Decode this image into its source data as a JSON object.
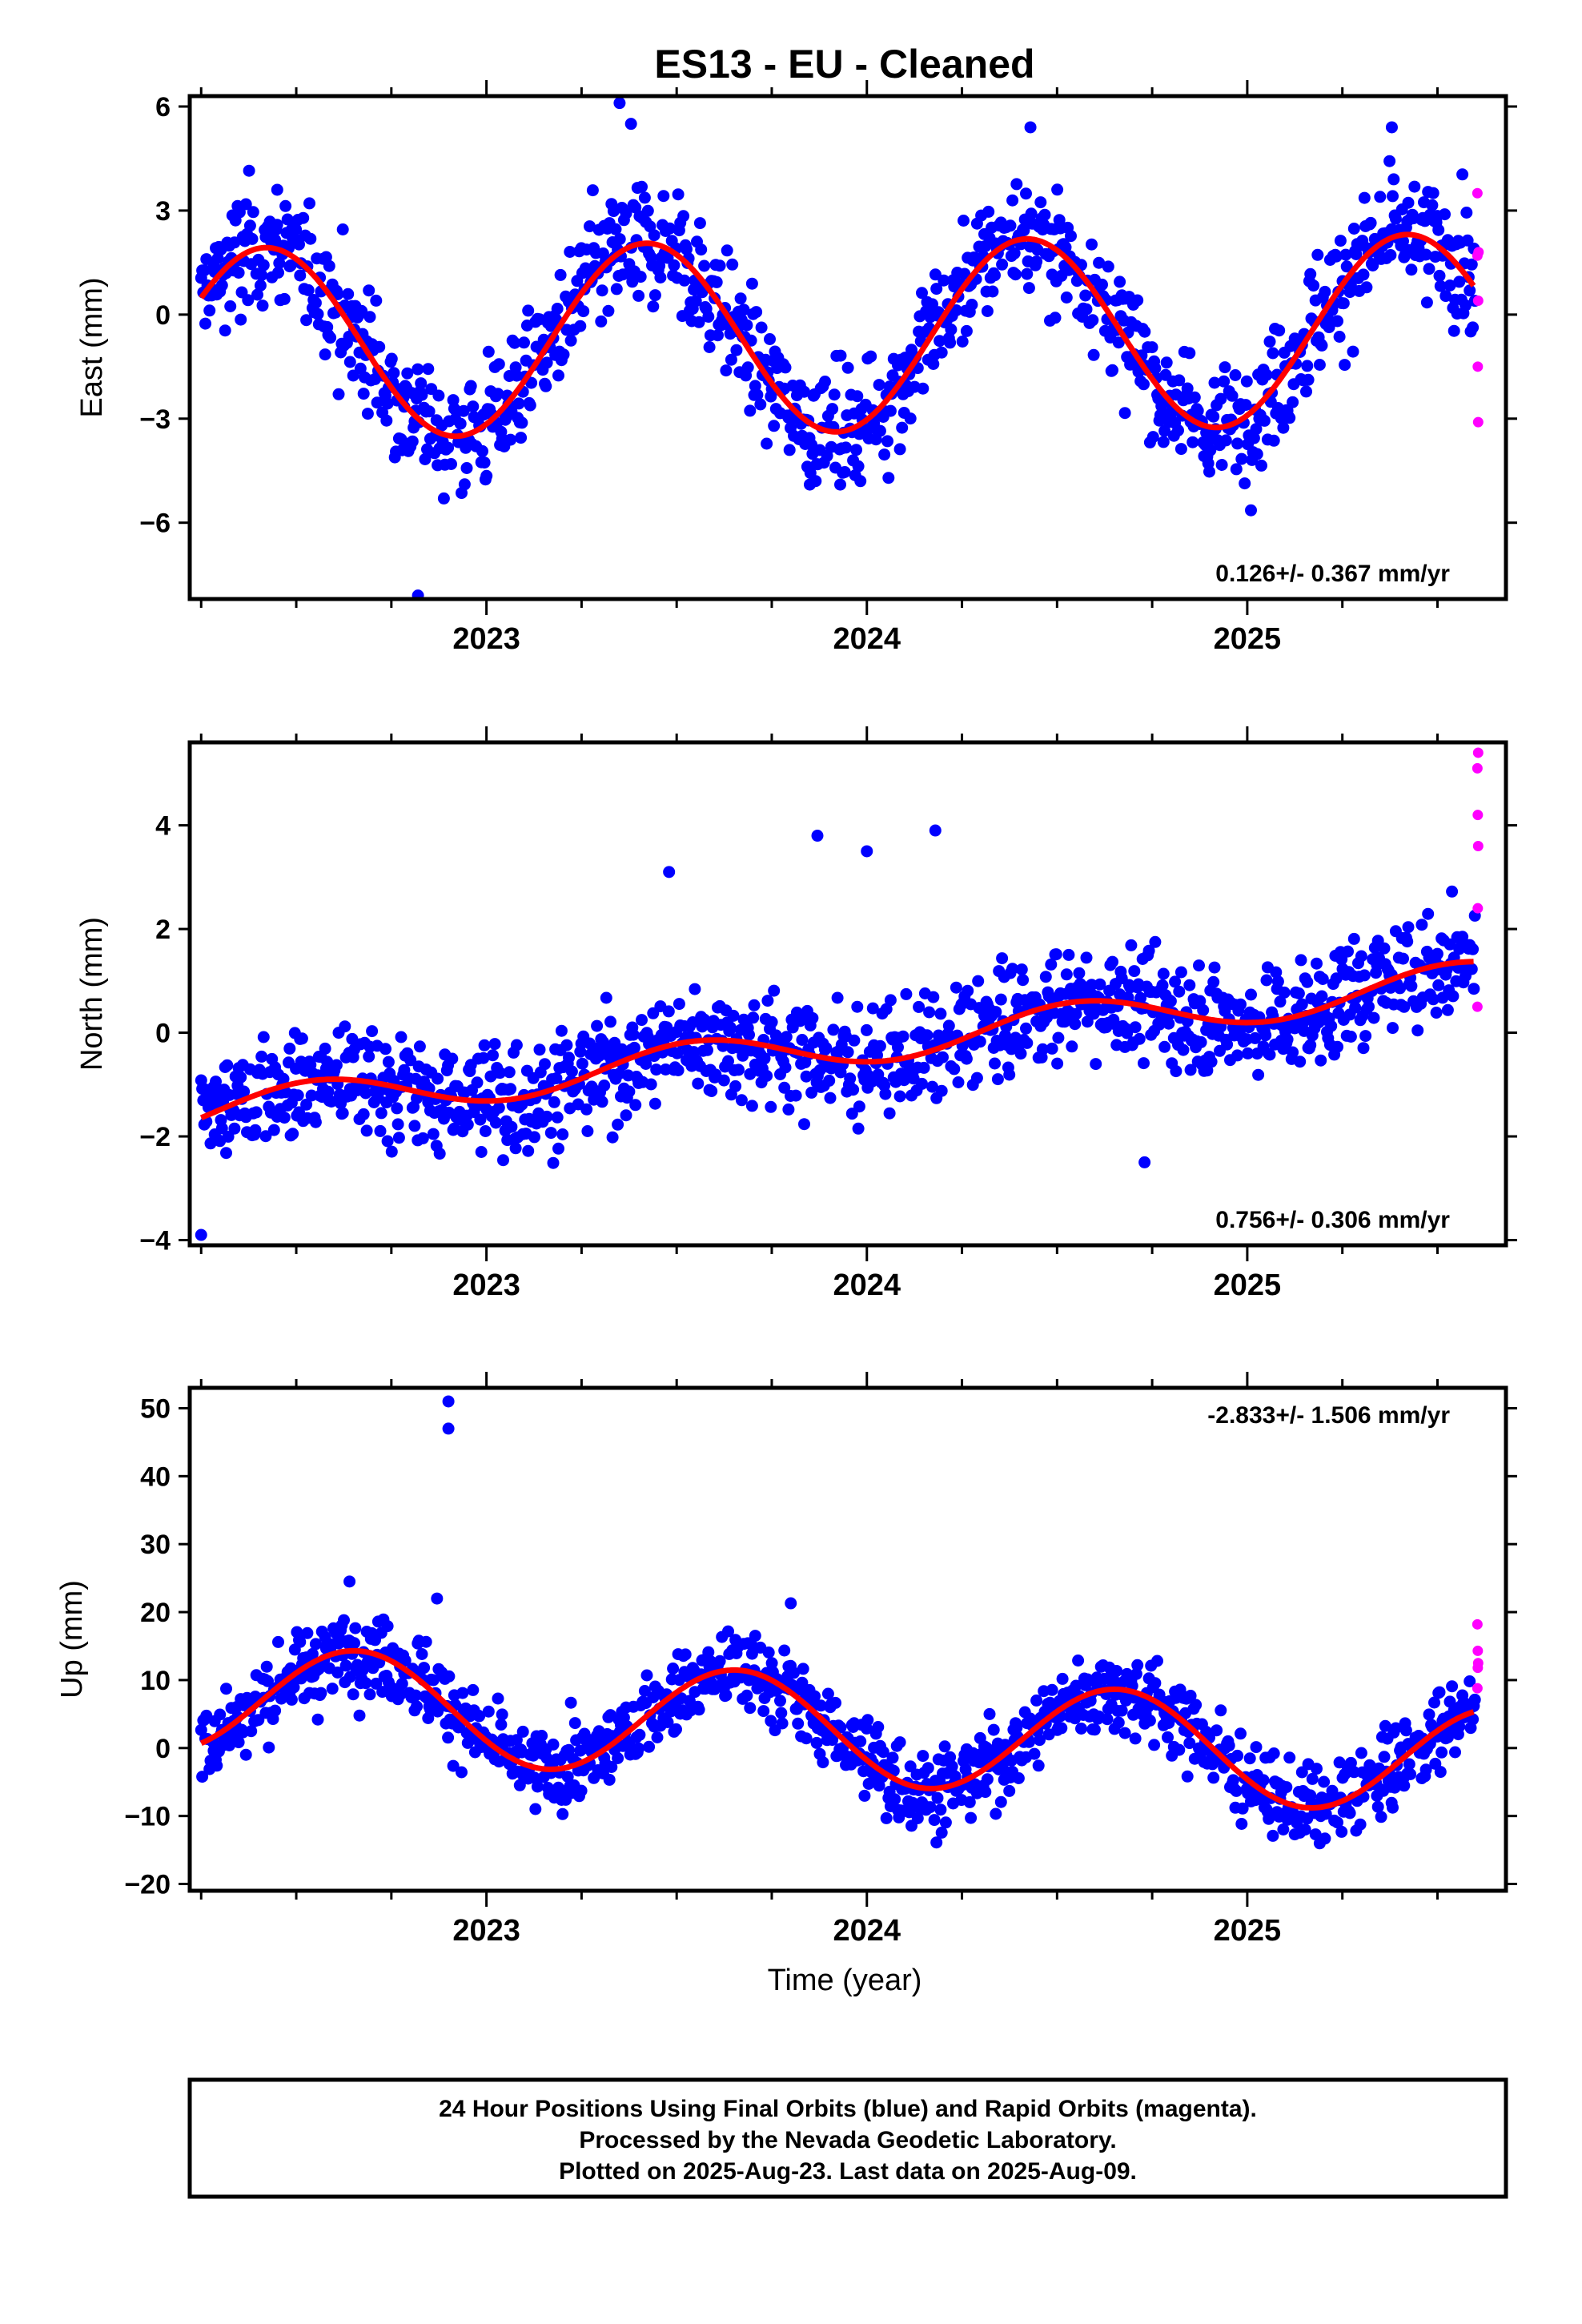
{
  "title": "ES13  - EU - Cleaned",
  "xlabel": "Time (year)",
  "footer": [
    "24 Hour Positions Using Final Orbits (blue) and Rapid Orbits (magenta).",
    "Processed by the Nevada Geodetic Laboratory.",
    "Plotted on 2025-Aug-23. Last data on 2025-Aug-09."
  ],
  "colors": {
    "final": "#0000ff",
    "rapid": "#ff00ff",
    "model": "#ff0000",
    "frame": "#000000"
  },
  "chart_data": [
    {
      "type": "scatter",
      "name": "east",
      "ylabel": "East (mm)",
      "rate": "0.126+/- 0.367 mm/yr",
      "xlim": [
        2022.22,
        2025.68
      ],
      "ylim": [
        -8.2,
        6.3
      ],
      "yticks": [
        6,
        3,
        0,
        -3,
        -6
      ],
      "ytick_labels": [
        "6",
        "3",
        "0",
        "−3",
        "−6"
      ],
      "xticks": [
        2023,
        2024,
        2025
      ],
      "xtick_labels": [
        "2023",
        "2024",
        "2025"
      ],
      "model": {
        "offset": -0.62,
        "trend": 0.126,
        "amp": 2.75,
        "phase_peak": 0.42
      },
      "scatter": 1.25,
      "rapid_points": [
        [
          2025.605,
          3.5
        ],
        [
          2025.605,
          1.7
        ],
        [
          2025.608,
          1.8
        ],
        [
          2025.607,
          0.4
        ],
        [
          2025.606,
          -1.5
        ],
        [
          2025.607,
          -3.1
        ]
      ],
      "outliers": [
        [
          2022.45,
          3.6
        ],
        [
          2023.35,
          6.1
        ],
        [
          2023.38,
          5.5
        ],
        [
          2024.43,
          5.4
        ],
        [
          2025.38,
          5.4
        ],
        [
          2022.82,
          -8.1
        ],
        [
          2023.85,
          -4.9
        ],
        [
          2023.93,
          -4.9
        ]
      ]
    },
    {
      "type": "scatter",
      "name": "north",
      "ylabel": "North (mm)",
      "rate": "0.756+/- 0.306 mm/yr",
      "xlim": [
        2022.22,
        2025.68
      ],
      "ylim": [
        -4.1,
        5.6
      ],
      "yticks": [
        4,
        2,
        0,
        -2,
        -4
      ],
      "ytick_labels": [
        "4",
        "2",
        "0",
        "−2",
        "−4"
      ],
      "xticks": [
        2023,
        2024,
        2025
      ],
      "xtick_labels": [
        "2023",
        "2024",
        "2025"
      ],
      "model": {
        "offset": -0.2,
        "trend": 0.756,
        "amp": 0.38,
        "phase_peak": 0.55
      },
      "scatter": 0.75,
      "rapid_points": [
        [
          2025.607,
          5.4
        ],
        [
          2025.605,
          5.1
        ],
        [
          2025.606,
          4.2
        ],
        [
          2025.607,
          3.6
        ],
        [
          2025.606,
          2.4
        ],
        [
          2025.605,
          0.5
        ]
      ],
      "outliers": [
        [
          2023.48,
          3.1
        ],
        [
          2023.87,
          3.8
        ],
        [
          2024.0,
          3.5
        ],
        [
          2024.18,
          3.9
        ],
        [
          2024.73,
          -2.5
        ],
        [
          2022.25,
          -3.9
        ]
      ]
    },
    {
      "type": "scatter",
      "name": "up",
      "ylabel": "Up (mm)",
      "rate": "-2.833+/- 1.506 mm/yr",
      "xlim": [
        2022.22,
        2025.68
      ],
      "ylim": [
        -21,
        53
      ],
      "yticks": [
        50,
        40,
        30,
        20,
        10,
        0,
        -10,
        -20
      ],
      "ytick_labels": [
        "50",
        "40",
        "30",
        "20",
        "10",
        "0",
        "−10",
        "−20"
      ],
      "xticks": [
        2023,
        2024,
        2025
      ],
      "xtick_labels": [
        "2023",
        "2024",
        "2025"
      ],
      "model": {
        "offset": 2.5,
        "trend": -2.833,
        "amp": 8.0,
        "phase_peak": 0.66
      },
      "scatter": 4.2,
      "rapid_points": [
        [
          2025.605,
          18.2
        ],
        [
          2025.606,
          14.3
        ],
        [
          2025.607,
          12.5
        ],
        [
          2025.606,
          11.8
        ],
        [
          2025.605,
          8.8
        ]
      ],
      "outliers": [
        [
          2022.9,
          51.0
        ],
        [
          2022.9,
          47.0
        ],
        [
          2022.87,
          22.0
        ],
        [
          2022.64,
          24.5
        ],
        [
          2023.8,
          21.3
        ]
      ]
    }
  ]
}
